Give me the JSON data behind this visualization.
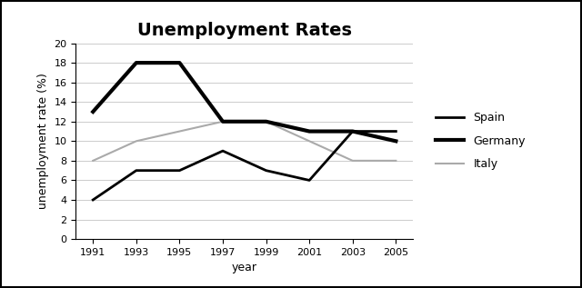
{
  "title": "Unemployment Rates",
  "xlabel": "year",
  "ylabel": "unemployment rate (%)",
  "years": [
    1991,
    1993,
    1995,
    1997,
    1999,
    2001,
    2003,
    2005
  ],
  "spain": [
    4,
    7,
    7,
    9,
    7,
    6,
    11,
    11
  ],
  "germany": [
    13,
    18,
    18,
    12,
    12,
    11,
    11,
    10
  ],
  "italy": [
    8,
    10,
    11,
    12,
    12,
    10,
    8,
    8
  ],
  "spain_color": "#000000",
  "germany_color": "#000000",
  "italy_color": "#aaaaaa",
  "spain_lw": 2.0,
  "germany_lw": 3.0,
  "italy_lw": 1.5,
  "ylim": [
    0,
    20
  ],
  "yticks": [
    0,
    2,
    4,
    6,
    8,
    10,
    12,
    14,
    16,
    18,
    20
  ],
  "bg_color": "#ffffff",
  "title_fontsize": 14,
  "label_fontsize": 9,
  "tick_fontsize": 8,
  "legend_labels": [
    "Spain",
    "Germany",
    "Italy"
  ],
  "outer_border": true,
  "grid_color": "#cccccc",
  "grid_lw": 0.7
}
